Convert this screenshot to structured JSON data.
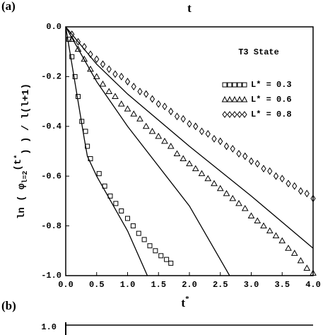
{
  "chart_data": {
    "type": "scatter",
    "panel_labels": [
      "(a)",
      "(b)"
    ],
    "top_axis_label": "t",
    "xlabel_parts": [
      "t",
      "*"
    ],
    "ylabel_parts": [
      "ln ( φ",
      "l=2",
      "(t",
      "*",
      ") ) / l(l+1)"
    ],
    "legend_title": "T3 State",
    "panel_b_ytick": "1.0",
    "xlim": [
      0,
      4
    ],
    "ylim": [
      -1,
      0
    ],
    "xticks": [
      {
        "value": 0,
        "label": "0.0"
      },
      0.5,
      {
        "value": 1,
        "label": "1.0"
      },
      1.5,
      {
        "value": 2,
        "label": "2.0"
      },
      2.5,
      {
        "value": 3,
        "label": "3.0"
      },
      3.5,
      {
        "value": 4,
        "label": "4.0"
      }
    ],
    "yticks": [
      {
        "value": 0,
        "label": "0.0"
      },
      -0.2,
      -0.4,
      -0.6,
      -0.8,
      {
        "value": -1,
        "label": "-1.0"
      }
    ],
    "series": [
      {
        "name": "L* = 0.3",
        "marker": "square",
        "color": "#000000",
        "x": [
          0.05,
          0.1,
          0.15,
          0.2,
          0.26,
          0.32,
          0.35,
          0.4,
          0.54,
          0.63,
          0.72,
          0.81,
          0.9,
          1.0,
          1.09,
          1.18,
          1.27,
          1.36,
          1.45,
          1.54,
          1.63,
          1.7
        ],
        "values": [
          -0.05,
          -0.12,
          -0.2,
          -0.28,
          -0.38,
          -0.42,
          -0.48,
          -0.53,
          -0.59,
          -0.64,
          -0.68,
          -0.71,
          -0.74,
          -0.77,
          -0.8,
          -0.83,
          -0.855,
          -0.88,
          -0.9,
          -0.92,
          -0.935,
          -0.95
        ]
      },
      {
        "name": "L* = 0.6",
        "marker": "triangle",
        "color": "#000000",
        "x": [
          0.1,
          0.2,
          0.3,
          0.4,
          0.5,
          0.6,
          0.7,
          0.8,
          0.9,
          1.0,
          1.1,
          1.2,
          1.3,
          1.4,
          1.5,
          1.6,
          1.7,
          1.8,
          1.9,
          2.0,
          2.1,
          2.2,
          2.3,
          2.4,
          2.5,
          2.6,
          2.7,
          2.8,
          2.9,
          3.0,
          3.1,
          3.2,
          3.3,
          3.4,
          3.5,
          3.6,
          3.7,
          3.8,
          3.9,
          4.0
        ],
        "values": [
          -0.05,
          -0.09,
          -0.13,
          -0.17,
          -0.2,
          -0.23,
          -0.26,
          -0.28,
          -0.31,
          -0.33,
          -0.35,
          -0.37,
          -0.4,
          -0.42,
          -0.44,
          -0.46,
          -0.48,
          -0.51,
          -0.53,
          -0.55,
          -0.57,
          -0.59,
          -0.61,
          -0.63,
          -0.65,
          -0.67,
          -0.69,
          -0.71,
          -0.73,
          -0.76,
          -0.78,
          -0.8,
          -0.82,
          -0.84,
          -0.86,
          -0.89,
          -0.91,
          -0.94,
          -0.97,
          -0.99
        ]
      },
      {
        "name": "L* = 0.8",
        "marker": "diamond",
        "color": "#000000",
        "x": [
          0.1,
          0.2,
          0.3,
          0.4,
          0.5,
          0.6,
          0.7,
          0.8,
          0.9,
          1.0,
          1.1,
          1.2,
          1.3,
          1.4,
          1.5,
          1.6,
          1.7,
          1.8,
          1.9,
          2.0,
          2.1,
          2.2,
          2.3,
          2.4,
          2.5,
          2.6,
          2.7,
          2.8,
          2.9,
          3.0,
          3.1,
          3.2,
          3.3,
          3.4,
          3.5,
          3.6,
          3.7,
          3.8,
          3.9,
          4.0
        ],
        "values": [
          -0.03,
          -0.06,
          -0.08,
          -0.11,
          -0.13,
          -0.15,
          -0.17,
          -0.19,
          -0.2,
          -0.22,
          -0.24,
          -0.26,
          -0.27,
          -0.29,
          -0.31,
          -0.32,
          -0.34,
          -0.36,
          -0.37,
          -0.39,
          -0.4,
          -0.42,
          -0.43,
          -0.45,
          -0.46,
          -0.48,
          -0.49,
          -0.51,
          -0.52,
          -0.54,
          -0.55,
          -0.57,
          -0.58,
          -0.6,
          -0.61,
          -0.63,
          -0.64,
          -0.66,
          -0.67,
          -0.69
        ]
      },
      {
        "marker": "line",
        "color": "#000000",
        "x": [
          0,
          0.1,
          0.2,
          0.3,
          0.35,
          0.5,
          1.0,
          1.32
        ],
        "values": [
          0,
          -0.15,
          -0.3,
          -0.45,
          -0.52,
          -0.6,
          -0.82,
          -1.0
        ]
      },
      {
        "marker": "line",
        "color": "#000000",
        "x": [
          0,
          0.5,
          1.0,
          2.0,
          2.65
        ],
        "values": [
          0,
          -0.22,
          -0.4,
          -0.72,
          -1.0
        ]
      },
      {
        "marker": "line",
        "color": "#000000",
        "x": [
          0,
          0.5,
          1,
          2,
          3,
          4
        ],
        "values": [
          0,
          -0.15,
          -0.27,
          -0.48,
          -0.68,
          -0.89
        ]
      }
    ]
  }
}
